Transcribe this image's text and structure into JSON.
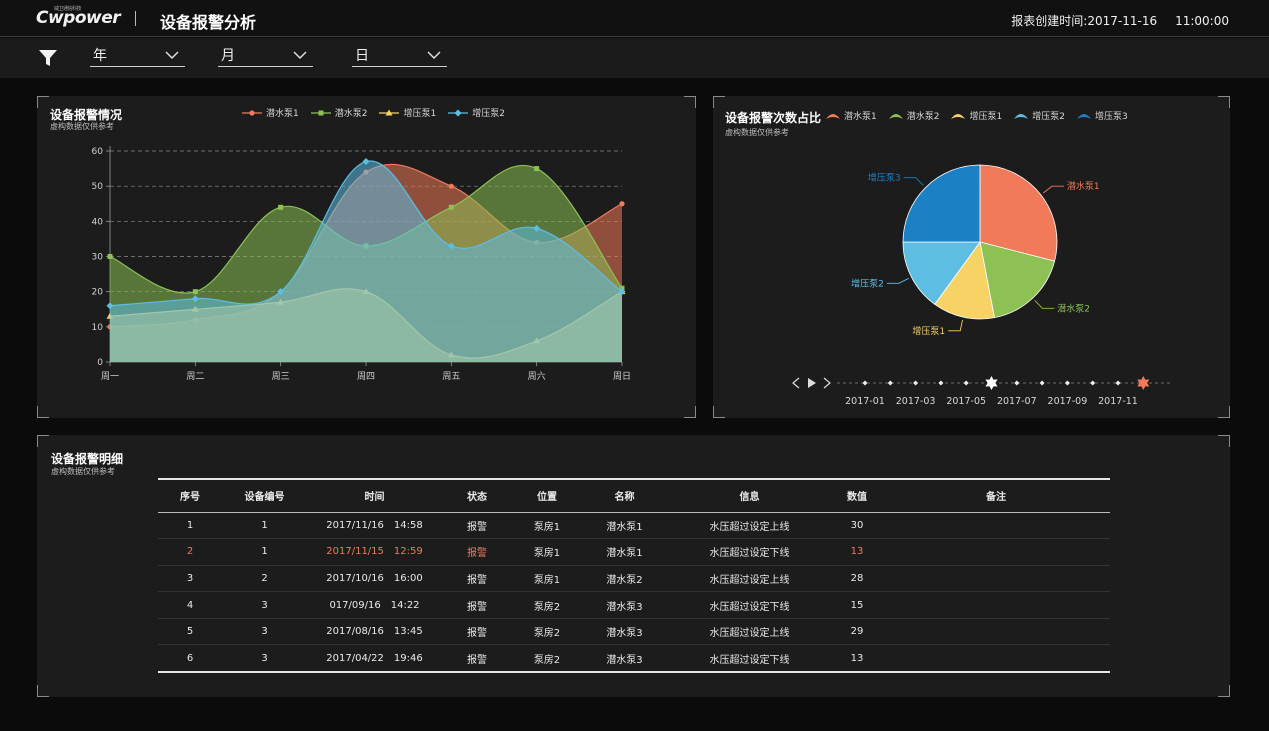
{
  "header": {
    "logo_text": "Cwpower",
    "logo_small": "威卫通信科技",
    "title": "设备报警分析",
    "report_time_label": "报表创建时间:",
    "report_date": "2017-11-16",
    "report_clock": "11:00:00"
  },
  "filters": {
    "year_label": "年",
    "month_label": "月",
    "day_label": "日"
  },
  "colors": {
    "pump1": "#f07a5a",
    "pump2": "#8dc153",
    "booster1": "#f6d364",
    "booster2": "#5dbde3",
    "booster3": "#1c80c4"
  },
  "line_panel": {
    "title": "设备报警情况",
    "subtitle": "虚构数据仅供参考",
    "chart_data": {
      "type": "area",
      "categories": [
        "周一",
        "周二",
        "周三",
        "周四",
        "周五",
        "周六",
        "周日"
      ],
      "ylim": [
        0,
        60
      ],
      "yticks": [
        0,
        10,
        20,
        30,
        40,
        50,
        60
      ],
      "grid": "dashed-horizontal",
      "legend_position": "top",
      "series": [
        {
          "name": "潜水泵1",
          "color": "#f07a5a",
          "marker": "circle",
          "values": [
            10,
            12,
            20,
            54,
            50,
            34,
            45
          ]
        },
        {
          "name": "潜水泵2",
          "color": "#8dc153",
          "marker": "square",
          "values": [
            30,
            20,
            44,
            33,
            44,
            55,
            21
          ]
        },
        {
          "name": "增压泵1",
          "color": "#f6d364",
          "marker": "triangle",
          "values": [
            13,
            15,
            17,
            20,
            2,
            6,
            20
          ]
        },
        {
          "name": "增压泵2",
          "color": "#5dbde3",
          "marker": "diamond",
          "values": [
            16,
            18,
            20,
            57,
            33,
            38,
            20
          ]
        }
      ]
    }
  },
  "pie_panel": {
    "title": "设备报警次数占比",
    "subtitle": "虚构数据仅供参考",
    "chart_data": {
      "type": "pie",
      "legend_position": "top",
      "slices": [
        {
          "name": "潜水泵1",
          "value": 29,
          "color": "#f07a5a"
        },
        {
          "name": "潜水泵2",
          "value": 18,
          "color": "#8dc153"
        },
        {
          "name": "增压泵1",
          "value": 13,
          "color": "#f6d364"
        },
        {
          "name": "增压泵2",
          "value": 15,
          "color": "#5dbde3"
        },
        {
          "name": "增压泵3",
          "value": 25,
          "color": "#1c80c4"
        }
      ]
    },
    "timeline": {
      "labels": [
        "2017-01",
        "2017-03",
        "2017-05",
        "2017-07",
        "2017-09",
        "2017-11"
      ],
      "current": "2017-05",
      "highlight": "2017-12"
    }
  },
  "detail": {
    "title": "设备报警明细",
    "subtitle": "虚构数据仅供参考",
    "columns": [
      "序号",
      "设备编号",
      "时间",
      "状态",
      "位置",
      "名称",
      "信息",
      "数值",
      "备注"
    ],
    "rows": [
      {
        "seq": "1",
        "dev": "1",
        "date": "2017/11/16",
        "time": "14:58",
        "status": "报警",
        "loc": "泵房1",
        "name": "潜水泵1",
        "info": "水压超过设定上线",
        "value": "30",
        "note": "",
        "alert": false
      },
      {
        "seq": "2",
        "dev": "1",
        "date": "2017/11/15",
        "time": "12:59",
        "status": "报警",
        "loc": "泵房1",
        "name": "潜水泵1",
        "info": "水压超过设定下线",
        "value": "13",
        "note": "",
        "alert": true
      },
      {
        "seq": "3",
        "dev": "2",
        "date": "2017/10/16",
        "time": "16:00",
        "status": "报警",
        "loc": "泵房1",
        "name": "潜水泵2",
        "info": "水压超过设定上线",
        "value": "28",
        "note": "",
        "alert": false
      },
      {
        "seq": "4",
        "dev": "3",
        "date": "017/09/16",
        "time": "14:22",
        "status": "报警",
        "loc": "泵房2",
        "name": "潜水泵3",
        "info": "水压超过设定下线",
        "value": "15",
        "note": "",
        "alert": false
      },
      {
        "seq": "5",
        "dev": "3",
        "date": "2017/08/16",
        "time": "13:45",
        "status": "报警",
        "loc": "泵房2",
        "name": "潜水泵3",
        "info": "水压超过设定上线",
        "value": "29",
        "note": "",
        "alert": false
      },
      {
        "seq": "6",
        "dev": "3",
        "date": "2017/04/22",
        "time": "19:46",
        "status": "报警",
        "loc": "泵房2",
        "name": "潜水泵3",
        "info": "水压超过设定下线",
        "value": "13",
        "note": "",
        "alert": false
      }
    ]
  }
}
